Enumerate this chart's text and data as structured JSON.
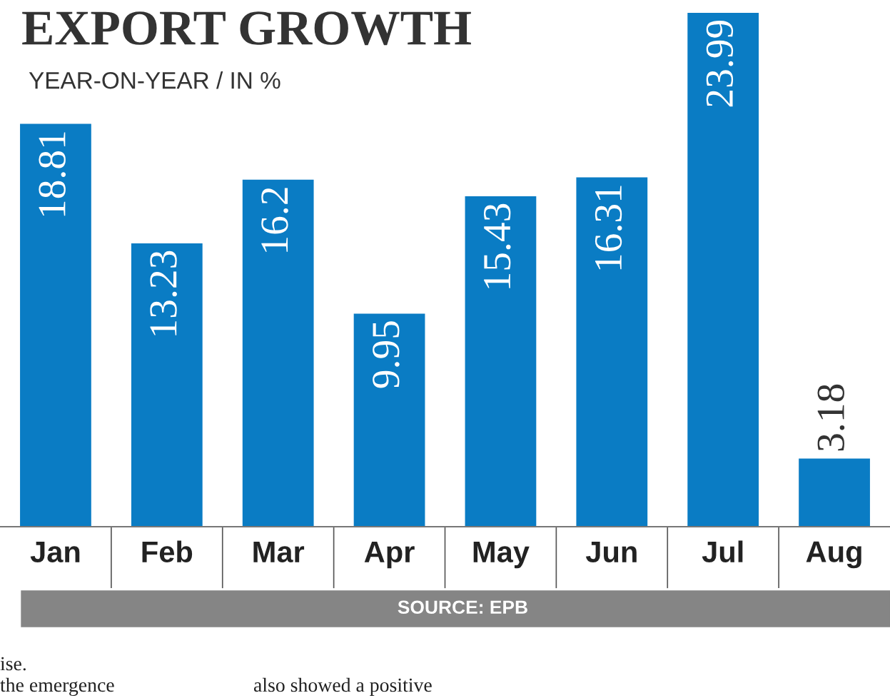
{
  "chart_data": {
    "type": "bar",
    "title": "EXPORT GROWTH",
    "subtitle": "YEAR-ON-YEAR / IN %",
    "categories": [
      "Jan",
      "Feb",
      "Mar",
      "Apr",
      "May",
      "Jun",
      "Jul",
      "Aug"
    ],
    "values": [
      18.81,
      13.23,
      16.2,
      9.95,
      15.43,
      16.31,
      23.99,
      3.18
    ],
    "color": "#0a7cc4",
    "ylim": [
      0,
      24
    ],
    "tick_labels": "x",
    "grid": false,
    "legend": false,
    "data_labels": true,
    "annotations": [
      "SOURCE: EPB",
      "ise.",
      "the emergence",
      "also showed a positive"
    ]
  }
}
